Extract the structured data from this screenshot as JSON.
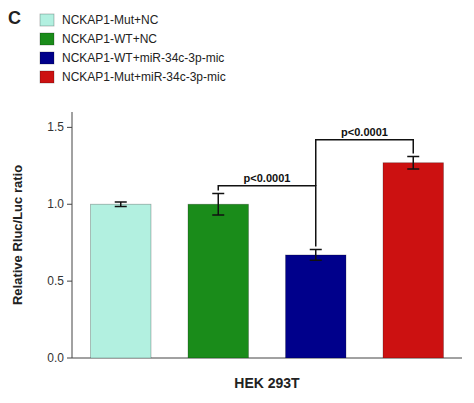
{
  "chart_data": {
    "type": "bar",
    "categories": [
      "NCKAP1-Mut+NC",
      "NCKAP1-WT+NC",
      "NCKAP1-WT+miR-34c-3p-mic",
      "NCKAP1-Mut+miR-34c-3p-mic"
    ],
    "values": [
      1.0,
      1.0,
      0.67,
      1.27
    ],
    "errors": [
      0.015,
      0.07,
      0.035,
      0.04
    ],
    "colors": [
      "#b2f0e0",
      "#1a8c1a",
      "#00008b",
      "#cc1111"
    ],
    "y_label": "Relative Rluc/Luc ratio",
    "x_label": "HEK 293T",
    "ylim": [
      0,
      1.6
    ],
    "yticks": [
      0.0,
      0.5,
      1.0,
      1.5
    ],
    "grid": false,
    "legend": "upper left",
    "tick_labels": "y",
    "annotations": [
      {
        "text": "C"
      },
      {
        "text": "p<0.0001",
        "between": [
          "NCKAP1-WT+NC",
          "NCKAP1-WT+miR-34c-3p-mic"
        ],
        "y": 1.12
      },
      {
        "text": "p<0.0001",
        "between": [
          "NCKAP1-WT+miR-34c-3p-mic",
          "NCKAP1-Mut+miR-34c-3p-mic"
        ],
        "y": 1.42
      }
    ]
  }
}
